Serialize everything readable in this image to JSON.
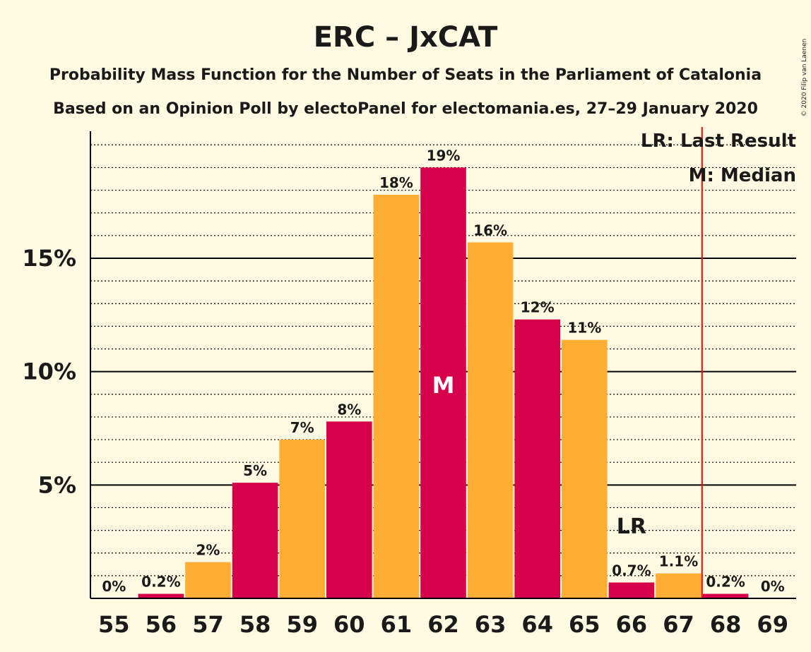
{
  "title": "ERC – JxCAT",
  "subtitle1": "Probability Mass Function for the Number of Seats in the Parliament of Catalonia",
  "subtitle2": "Based on an Opinion Poll by electoPanel for electomania.es, 27–29 January 2020",
  "copyright": "© 2020 Filip van Laenen",
  "legend": {
    "lr": "LR: Last Result",
    "m": "M: Median"
  },
  "markers": {
    "median_text": "M",
    "median_seat": 62,
    "lr_text": "LR",
    "lr_seat": 66,
    "last_result_line_after_seat": 67
  },
  "colors": {
    "background": "#FFFAE1",
    "bar_primary": "#D6004A",
    "bar_secondary": "#FFAE33",
    "last_result_line": "#FF0000",
    "text": "#1a1a1a"
  },
  "chart_data": {
    "type": "bar",
    "categories": [
      "55",
      "56",
      "57",
      "58",
      "59",
      "60",
      "61",
      "62",
      "63",
      "64",
      "65",
      "66",
      "67",
      "68",
      "69"
    ],
    "values": [
      0,
      0.2,
      1.6,
      5.1,
      7.0,
      7.8,
      17.8,
      19.0,
      15.7,
      12.3,
      11.4,
      0.7,
      1.1,
      0.2,
      0
    ],
    "labels": [
      "0%",
      "0.2%",
      "2%",
      "5%",
      "7%",
      "8%",
      "18%",
      "19%",
      "16%",
      "12%",
      "11%",
      "0.7%",
      "1.1%",
      "0.2%",
      "0%"
    ],
    "ylim": [
      0,
      20.6
    ],
    "yticks": [
      5,
      10,
      15
    ],
    "ytick_labels": [
      "5%",
      "10%",
      "15%"
    ],
    "minor_grid_step": 1,
    "grid": true,
    "legend_position": "top-right"
  }
}
